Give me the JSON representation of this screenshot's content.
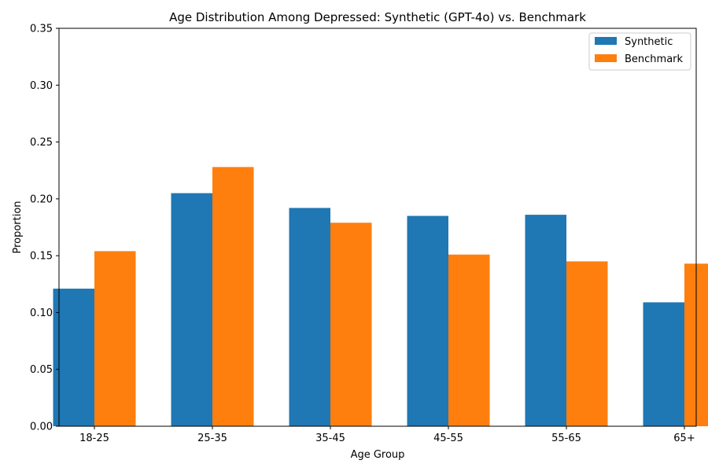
{
  "chart_data": {
    "type": "bar",
    "title": "Age Distribution Among Depressed: Synthetic (GPT-4o) vs. Benchmark",
    "xlabel": "Age Group",
    "ylabel": "Proportion",
    "categories": [
      "18-25",
      "25-35",
      "35-45",
      "45-55",
      "55-65",
      "65+"
    ],
    "series": [
      {
        "name": "Synthetic",
        "color": "#1f77b4",
        "values": [
          0.121,
          0.205,
          0.192,
          0.185,
          0.186,
          0.109
        ]
      },
      {
        "name": "Benchmark",
        "color": "#ff7f0e",
        "values": [
          0.154,
          0.228,
          0.179,
          0.151,
          0.145,
          0.143
        ]
      }
    ],
    "ylim": [
      0,
      0.35
    ],
    "yticks": [
      "0.00",
      "0.05",
      "0.10",
      "0.15",
      "0.20",
      "0.25",
      "0.30",
      "0.35"
    ],
    "grid": false,
    "legend_position": "top-right"
  }
}
